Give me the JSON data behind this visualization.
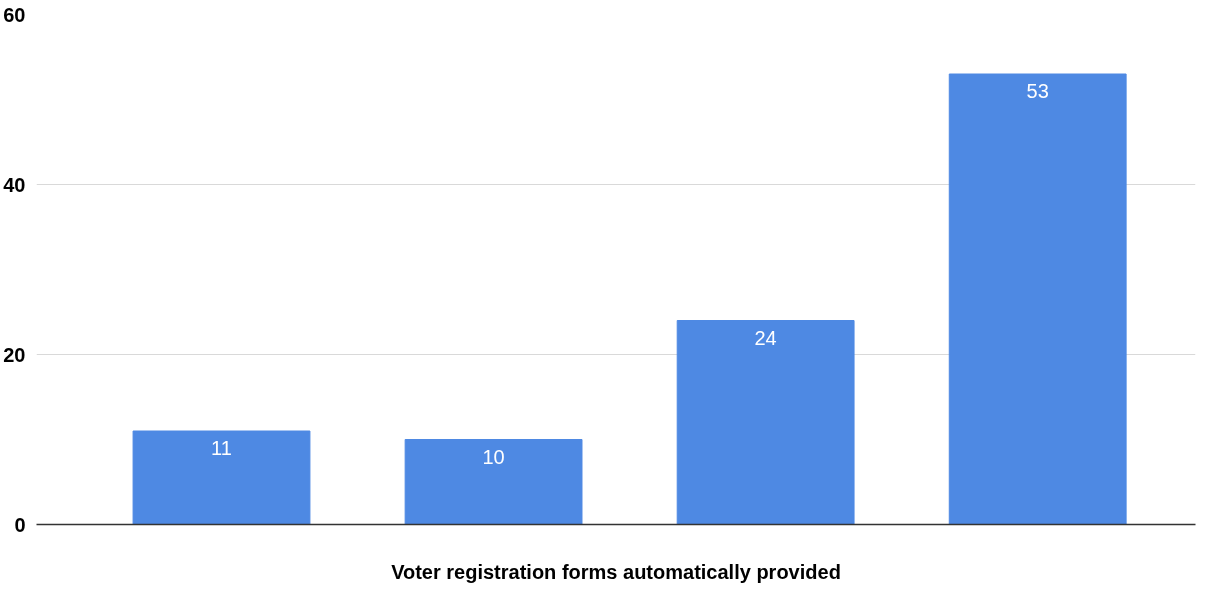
{
  "chart_data": {
    "type": "bar",
    "categories": [
      null,
      null,
      null,
      null
    ],
    "values": [
      11,
      10,
      24,
      53
    ],
    "color": "#4e89e3",
    "xlabel": "Voter registration forms automatically provided",
    "ylim": [
      0,
      60
    ],
    "yticks": [
      0,
      20,
      40,
      60
    ],
    "grid": "y",
    "data_labels": true
  }
}
